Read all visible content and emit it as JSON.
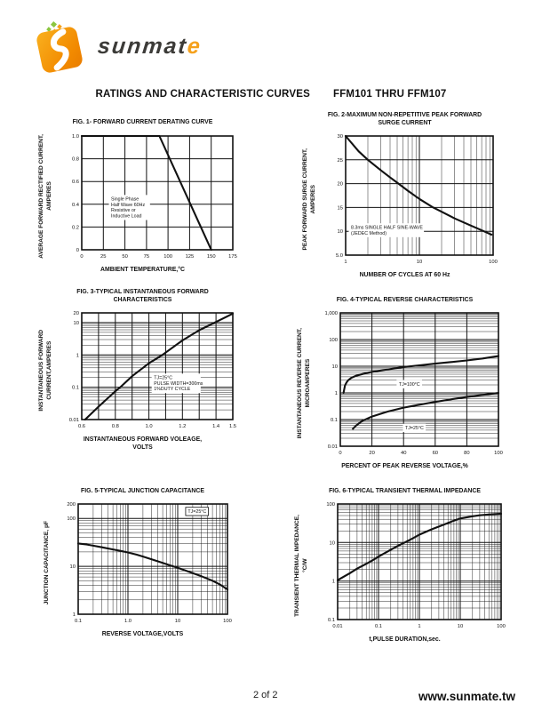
{
  "header": {
    "logo_text_main": "sunmat",
    "logo_text_accent": "e",
    "title": "RATINGS AND CHARACTERISTIC CURVES",
    "part_range": "FFM101  THRU  FFM107"
  },
  "footer": {
    "page": "2 of 2",
    "website": "www.sunmate.tw"
  },
  "colors": {
    "ink": "#111111",
    "logo_orange": "#f28a00",
    "logo_orange_light": "#f9b01e",
    "logo_dark": "#3c3b38",
    "logo_green": "#8cc63f",
    "accent_letter": "#f5a11c"
  },
  "chart_data": [
    {
      "type": "line",
      "title": "FIG. 1- FORWARD CURRENT DERATING CURVE",
      "xlabel": "AMBIENT TEMPERATURE,°C",
      "ylabel": "AVERAGE FORWARD RECTIFIED CURRENT,\nAMPERES",
      "x": {
        "scale": "linear",
        "min": 0,
        "max": 175,
        "grid_step": 25,
        "ticks": [
          {
            "v": 0,
            "label": "0"
          },
          {
            "v": 25,
            "label": "25"
          },
          {
            "v": 50,
            "label": "50"
          },
          {
            "v": 75,
            "label": "75"
          },
          {
            "v": 100,
            "label": "100"
          },
          {
            "v": 125,
            "label": "125"
          },
          {
            "v": 150,
            "label": "150"
          },
          {
            "v": 175,
            "label": "175"
          }
        ]
      },
      "y": {
        "scale": "linear",
        "min": 0,
        "max": 1.0,
        "grid_step": 0.2,
        "ticks": [
          {
            "v": 0,
            "label": "0"
          },
          {
            "v": 0.2,
            "label": "0.2"
          },
          {
            "v": 0.4,
            "label": "0.4"
          },
          {
            "v": 0.6,
            "label": "0.6"
          },
          {
            "v": 0.8,
            "label": "0.8"
          },
          {
            "v": 1.0,
            "label": "1.0"
          }
        ]
      },
      "series": [
        {
          "name": "derating",
          "points": [
            [
              0,
              1.0
            ],
            [
              90,
              1.0
            ],
            [
              150,
              0
            ]
          ]
        }
      ],
      "annotations": [
        {
          "x": 34,
          "y": 0.47,
          "boxed": false,
          "lines": [
            "Single Phase",
            "Half Wave 60Hz",
            "Resistive or",
            "Inductive Load"
          ]
        }
      ]
    },
    {
      "type": "line",
      "title": "FIG. 2-MAXIMUM NON-REPETITIVE PEAK FORWARD\nSURGE CURRENT",
      "xlabel": "NUMBER OF CYCLES AT 60 Hz",
      "ylabel": "PEAK  FORWARD SURGE CURRENT,\nAMPERES",
      "x": {
        "scale": "log",
        "min": 1,
        "max": 100,
        "ticks": [
          {
            "v": 1,
            "label": "1"
          },
          {
            "v": 10,
            "label": "10"
          },
          {
            "v": 100,
            "label": "100"
          }
        ]
      },
      "y": {
        "scale": "linear",
        "min": 5,
        "max": 30,
        "grid_step": 5,
        "ticks": [
          {
            "v": 5,
            "label": "5.0"
          },
          {
            "v": 10,
            "label": "10"
          },
          {
            "v": 15,
            "label": "15"
          },
          {
            "v": 20,
            "label": "20"
          },
          {
            "v": 25,
            "label": "25"
          },
          {
            "v": 30,
            "label": "30"
          }
        ]
      },
      "series": [
        {
          "name": "surge",
          "points": [
            [
              1,
              30
            ],
            [
              1.5,
              26.8
            ],
            [
              2,
              25
            ],
            [
              3,
              22.8
            ],
            [
              4,
              21.3
            ],
            [
              5,
              20.2
            ],
            [
              7,
              18.5
            ],
            [
              10,
              16.8
            ],
            [
              15,
              15.1
            ],
            [
              20,
              14.1
            ],
            [
              30,
              12.7
            ],
            [
              50,
              11.2
            ],
            [
              70,
              10.2
            ],
            [
              95,
              9.3
            ]
          ]
        }
      ],
      "annotations": [
        {
          "x": 1.18,
          "y": 11.4,
          "boxed": false,
          "lines": [
            "8.3ms SINGLE HALF SINE-WAVE",
            "(JEDEC Method)"
          ]
        }
      ]
    },
    {
      "type": "line",
      "title": "FIG. 3-TYPICAL INSTANTANEOUS FORWARD\nCHARACTERISTICS",
      "xlabel": "INSTANTANEOUS FORWARD VOLEAGE,\nVOLTS",
      "ylabel": "INSTANTANEOUS FORWARD\nCURRENT,AMPERES",
      "x": {
        "scale": "linear",
        "min": 0.6,
        "max": 1.5,
        "grid_step": 0.1,
        "ticks": [
          {
            "v": 0.6,
            "label": "0.6"
          },
          {
            "v": 0.8,
            "label": "0.8"
          },
          {
            "v": 1.0,
            "label": "1.0"
          },
          {
            "v": 1.2,
            "label": "1.2"
          },
          {
            "v": 1.4,
            "label": "1.4"
          },
          {
            "v": 1.5,
            "label": "1.5"
          }
        ]
      },
      "y": {
        "scale": "log",
        "min": 0.01,
        "max": 20,
        "ticks": [
          {
            "v": 0.01,
            "label": "0.01"
          },
          {
            "v": 0.1,
            "label": "0.1"
          },
          {
            "v": 1,
            "label": "1"
          },
          {
            "v": 10,
            "label": "10"
          },
          {
            "v": 20,
            "label": "20"
          }
        ]
      },
      "series": [
        {
          "name": "vf-if",
          "points": [
            [
              0.62,
              0.01
            ],
            [
              0.7,
              0.025
            ],
            [
              0.8,
              0.075
            ],
            [
              0.83,
              0.1
            ],
            [
              0.9,
              0.22
            ],
            [
              1.0,
              0.55
            ],
            [
              1.08,
              1.0
            ],
            [
              1.2,
              2.8
            ],
            [
              1.3,
              5.8
            ],
            [
              1.4,
              10.5
            ],
            [
              1.5,
              19
            ]
          ]
        }
      ],
      "annotations": [
        {
          "x": 1.03,
          "y": 0.24,
          "boxed": false,
          "lines": [
            "TJ=25°C",
            "PULSE WIDTH=300ms",
            "1%DUTY CYCLE"
          ]
        }
      ]
    },
    {
      "type": "line",
      "title": "FIG. 4-TYPICAL REVERSE CHARACTERISTICS",
      "xlabel": "PERCENT OF PEAK REVERSE VOLTAGE,%",
      "ylabel": "INSTANTANEOUS REVERSE CURRENT,\nMICROAMPERES",
      "x": {
        "scale": "linear",
        "min": 0,
        "max": 100,
        "grid_step": 20,
        "ticks": [
          {
            "v": 0,
            "label": "0"
          },
          {
            "v": 20,
            "label": "20"
          },
          {
            "v": 40,
            "label": "40"
          },
          {
            "v": 60,
            "label": "60"
          },
          {
            "v": 80,
            "label": "80"
          },
          {
            "v": 100,
            "label": "100"
          }
        ]
      },
      "y": {
        "scale": "log",
        "min": 0.01,
        "max": 1000,
        "ticks": [
          {
            "v": 0.01,
            "label": "0.01"
          },
          {
            "v": 0.1,
            "label": "0.1"
          },
          {
            "v": 1,
            "label": "1"
          },
          {
            "v": 10,
            "label": "10"
          },
          {
            "v": 100,
            "label": "100"
          },
          {
            "v": 1000,
            "label": "1,000"
          }
        ]
      },
      "series": [
        {
          "name": "tj-100c",
          "points": [
            [
              2,
              1
            ],
            [
              3,
              1.9
            ],
            [
              4,
              2.5
            ],
            [
              5,
              3
            ],
            [
              7,
              3.7
            ],
            [
              10,
              4.4
            ],
            [
              15,
              5.3
            ],
            [
              20,
              6.1
            ],
            [
              30,
              7.6
            ],
            [
              40,
              9.3
            ],
            [
              50,
              10.8
            ],
            [
              60,
              12.5
            ],
            [
              70,
              14.3
            ],
            [
              80,
              16.5
            ],
            [
              90,
              19.5
            ],
            [
              100,
              24
            ]
          ]
        },
        {
          "name": "tj-25c",
          "points": [
            [
              8,
              0.045
            ],
            [
              10,
              0.06
            ],
            [
              14,
              0.09
            ],
            [
              20,
              0.13
            ],
            [
              30,
              0.2
            ],
            [
              40,
              0.28
            ],
            [
              50,
              0.36
            ],
            [
              60,
              0.46
            ],
            [
              70,
              0.57
            ],
            [
              80,
              0.7
            ],
            [
              90,
              0.84
            ],
            [
              100,
              1.0
            ]
          ]
        }
      ],
      "annotations": [
        {
          "x": 37,
          "y": 2.7,
          "boxed": false,
          "lines": [
            "TJ=100°C"
          ]
        },
        {
          "x": 41,
          "y": 0.062,
          "boxed": false,
          "lines": [
            "TJ=25°C"
          ]
        }
      ]
    },
    {
      "type": "line",
      "title": "FIG. 5-TYPICAL JUNCTION CAPACITANCE",
      "xlabel": "REVERSE VOLTAGE,VOLTS",
      "ylabel": "JUNCTION CAPACITANCE, pF",
      "x": {
        "scale": "log",
        "min": 0.1,
        "max": 100,
        "ticks": [
          {
            "v": 0.1,
            "label": "0.1"
          },
          {
            "v": 1,
            "label": "1.0"
          },
          {
            "v": 10,
            "label": "10"
          },
          {
            "v": 100,
            "label": "100"
          }
        ]
      },
      "y": {
        "scale": "log",
        "min": 1,
        "max": 200,
        "ticks": [
          {
            "v": 1,
            "label": "1"
          },
          {
            "v": 10,
            "label": "10"
          },
          {
            "v": 100,
            "label": "100"
          },
          {
            "v": 200,
            "label": "200"
          }
        ]
      },
      "series": [
        {
          "name": "cj",
          "points": [
            [
              0.1,
              30
            ],
            [
              0.15,
              28.5
            ],
            [
              0.2,
              27
            ],
            [
              0.3,
              25
            ],
            [
              0.5,
              22.5
            ],
            [
              0.7,
              21
            ],
            [
              1,
              19.5
            ],
            [
              1.5,
              17.5
            ],
            [
              2,
              16
            ],
            [
              3,
              14
            ],
            [
              5,
              11.8
            ],
            [
              7,
              10.5
            ],
            [
              10,
              9.3
            ],
            [
              15,
              8
            ],
            [
              20,
              7.2
            ],
            [
              30,
              6.2
            ],
            [
              50,
              5
            ],
            [
              70,
              4.2
            ],
            [
              100,
              3.3
            ]
          ]
        }
      ],
      "annotations": [
        {
          "x": 16,
          "y": 160,
          "boxed": true,
          "lines": [
            "TJ=25°C"
          ]
        }
      ]
    },
    {
      "type": "line",
      "title": "FIG. 6-TYPICAL TRANSIENT THERMAL IMPEDANCE",
      "xlabel": "t,PULSE DURATION,sec.",
      "ylabel": "TRANSIENT THERMAL IMPEDANCE,\n°C/W",
      "x": {
        "scale": "log",
        "min": 0.01,
        "max": 100,
        "ticks": [
          {
            "v": 0.01,
            "label": "0.01"
          },
          {
            "v": 0.1,
            "label": "0.1"
          },
          {
            "v": 1,
            "label": "1"
          },
          {
            "v": 10,
            "label": "10"
          },
          {
            "v": 100,
            "label": "100"
          }
        ]
      },
      "y": {
        "scale": "log",
        "min": 0.1,
        "max": 100,
        "ticks": [
          {
            "v": 0.1,
            "label": "0.1"
          },
          {
            "v": 1,
            "label": "1"
          },
          {
            "v": 10,
            "label": "10"
          },
          {
            "v": 100,
            "label": "100"
          }
        ]
      },
      "series": [
        {
          "name": "zth",
          "points": [
            [
              0.01,
              1.05
            ],
            [
              0.02,
              1.6
            ],
            [
              0.03,
              2.1
            ],
            [
              0.05,
              2.8
            ],
            [
              0.07,
              3.4
            ],
            [
              0.1,
              4.3
            ],
            [
              0.2,
              6.5
            ],
            [
              0.3,
              8.2
            ],
            [
              0.5,
              10.8
            ],
            [
              0.7,
              13
            ],
            [
              1,
              16
            ],
            [
              2,
              22
            ],
            [
              3,
              26
            ],
            [
              5,
              32
            ],
            [
              7,
              37
            ],
            [
              10,
              42
            ],
            [
              20,
              48
            ],
            [
              30,
              51
            ],
            [
              50,
              53.5
            ],
            [
              100,
              56
            ]
          ]
        }
      ],
      "annotations": []
    }
  ]
}
